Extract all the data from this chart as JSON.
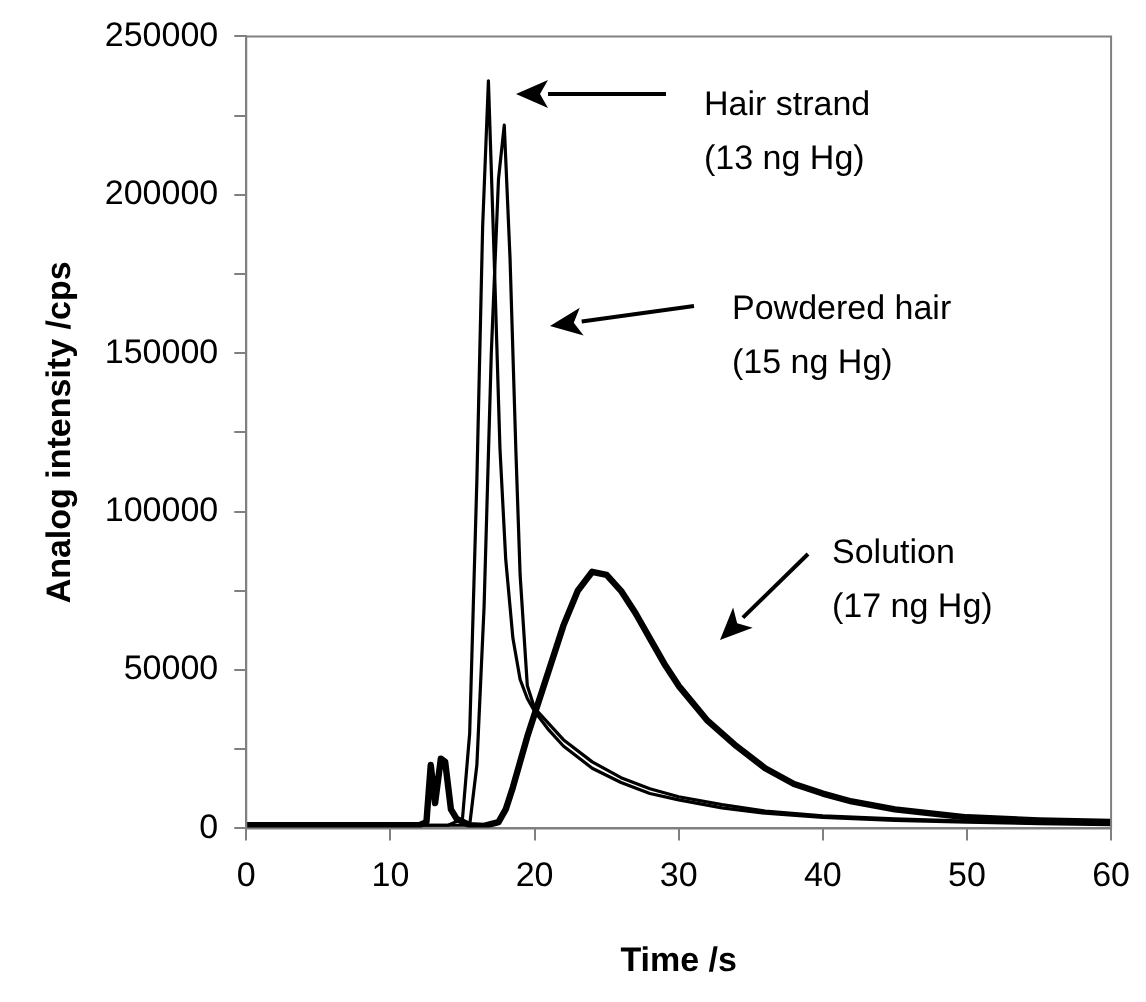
{
  "chart_data": {
    "type": "line",
    "xlabel": "Time /s",
    "ylabel": "Analog intensity /cps",
    "xlim": [
      0,
      60
    ],
    "xticks": [
      0,
      10,
      20,
      30,
      40,
      50,
      60
    ],
    "ylim": [
      0,
      250000
    ],
    "yticks": [
      0,
      {
        "value": 25000,
        "label": null
      },
      50000,
      {
        "value": 75000,
        "label": null
      },
      100000,
      {
        "value": 125000,
        "label": null
      },
      150000,
      {
        "value": 175000,
        "label": null
      },
      200000,
      {
        "value": 225000,
        "label": null
      },
      250000
    ],
    "grid": false,
    "legend": false,
    "marker": "none",
    "line_style": "solid",
    "series": [
      {
        "color": "#000000",
        "x": [
          0,
          12,
          14,
          15,
          15.5,
          16,
          16.4,
          16.8,
          17.2,
          17.6,
          18,
          18.5,
          19,
          19.5,
          20,
          21,
          22,
          24,
          26,
          28,
          30,
          33,
          36,
          40,
          45,
          50,
          55,
          60
        ],
        "values": [
          1000,
          1000,
          1000,
          3000,
          30000,
          110000,
          190000,
          236000,
          180000,
          120000,
          85000,
          60000,
          47000,
          41000,
          37000,
          31000,
          26000,
          19000,
          14500,
          11000,
          9000,
          6500,
          4800,
          3500,
          2500,
          2000,
          1500,
          1200
        ]
      },
      {
        "color": "#000000",
        "x": [
          0,
          12,
          15.5,
          16,
          16.5,
          17,
          17.5,
          17.9,
          18.3,
          18.7,
          19,
          19.5,
          20,
          21,
          22,
          24,
          26,
          28,
          30,
          33,
          36,
          40,
          45,
          50,
          55,
          60
        ],
        "values": [
          1000,
          1000,
          1000,
          20000,
          70000,
          150000,
          205000,
          222000,
          180000,
          120000,
          80000,
          45000,
          38000,
          33000,
          28000,
          21000,
          16000,
          12500,
          10000,
          7500,
          5500,
          4000,
          3000,
          2300,
          1800,
          1500
        ]
      },
      {
        "color": "#000000",
        "x": [
          0,
          12,
          12.5,
          12.8,
          13.1,
          13.5,
          13.8,
          14.2,
          14.6,
          15.5,
          16.5,
          17.5,
          18,
          18.5,
          19,
          19.5,
          20,
          21,
          22,
          23,
          24,
          25,
          26,
          27,
          28,
          29,
          30,
          32,
          34,
          36,
          38,
          40,
          42,
          45,
          50,
          55,
          60
        ],
        "values": [
          1000,
          1000,
          2000,
          20000,
          8000,
          22000,
          21000,
          6000,
          3000,
          1000,
          800,
          2000,
          6000,
          13000,
          21000,
          29000,
          36000,
          50000,
          64000,
          75000,
          81000,
          80000,
          75000,
          68000,
          60000,
          52000,
          45000,
          34000,
          26000,
          19000,
          14000,
          11000,
          8500,
          6000,
          3500,
          2500,
          2000
        ]
      }
    ],
    "annotations": [
      "Hair strand\n(13 ng Hg)",
      "Powdered hair\n(15 ng Hg)",
      "Solution\n(17 ng Hg)"
    ]
  }
}
